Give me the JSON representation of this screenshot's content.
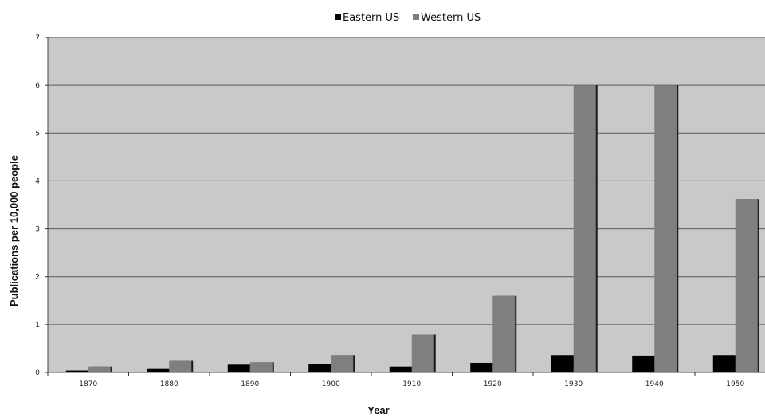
{
  "chart_data": {
    "type": "bar",
    "title": "",
    "xlabel": "Year",
    "ylabel": "Publications per 10,000 people",
    "categories": [
      "1870",
      "1880",
      "1890",
      "1900",
      "1910",
      "1920",
      "1930",
      "1940",
      "1950"
    ],
    "series": [
      {
        "name": "Eastern US",
        "color": "#000000",
        "values": [
          0.04,
          0.07,
          0.16,
          0.17,
          0.12,
          0.2,
          0.36,
          0.35,
          0.36
        ]
      },
      {
        "name": "Western US",
        "color": "#7f7f7f",
        "values": [
          0.12,
          0.24,
          0.21,
          0.36,
          0.79,
          1.6,
          6.0,
          6.0,
          3.62
        ]
      }
    ],
    "ylim": [
      0,
      7
    ],
    "yticks": [
      0,
      1,
      2,
      3,
      4,
      5,
      6,
      7
    ],
    "grid": true,
    "legend_position": "top-center",
    "plot_background": "#c9c9c9"
  }
}
